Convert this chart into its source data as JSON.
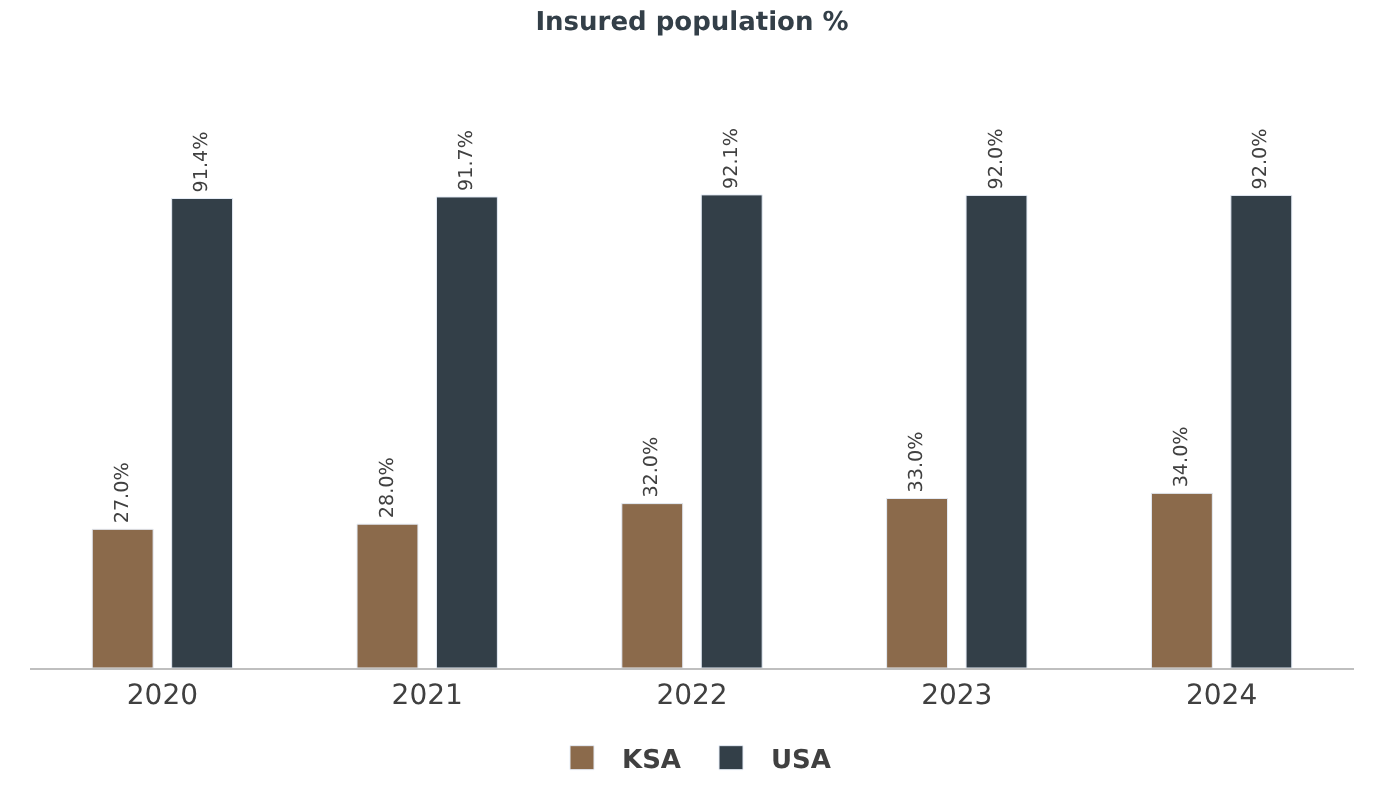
{
  "chart_data": {
    "type": "bar",
    "title": "Insured population %",
    "categories": [
      "2020",
      "2021",
      "2022",
      "2023",
      "2024"
    ],
    "series": [
      {
        "name": "KSA",
        "color": "#8b6a4b",
        "values": [
          27.0,
          28.0,
          32.0,
          33.0,
          34.0
        ],
        "value_labels": [
          "27.0%",
          "28.0%",
          "32.0%",
          "33.0%",
          "34.0%"
        ]
      },
      {
        "name": "USA",
        "color": "#333f48",
        "values": [
          91.4,
          91.7,
          92.1,
          92.0,
          92.0
        ],
        "value_labels": [
          "91.4%",
          "91.7%",
          "92.1%",
          "92.0%",
          "92.0%"
        ]
      }
    ],
    "legend": "bottom"
  }
}
